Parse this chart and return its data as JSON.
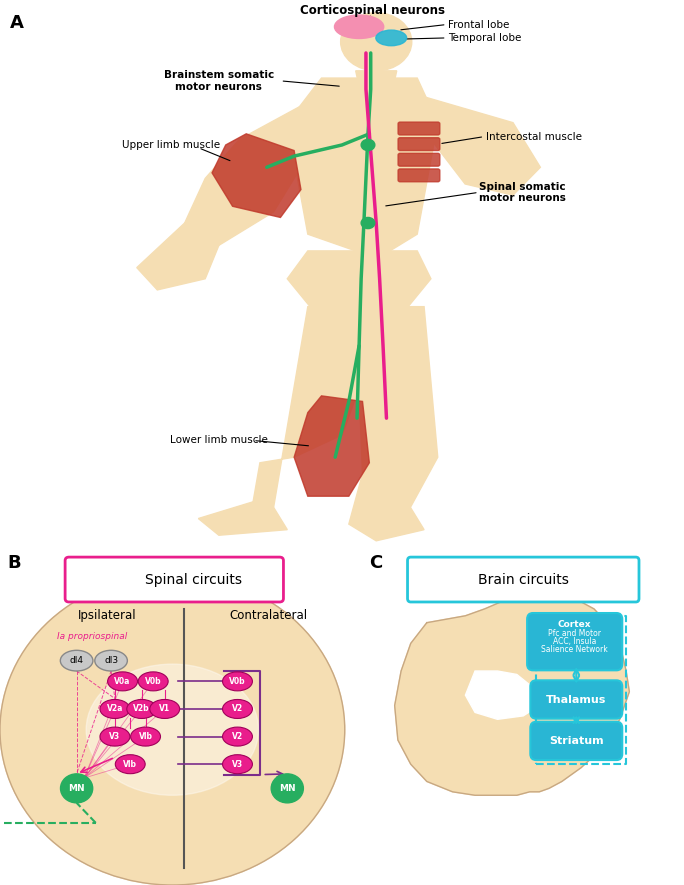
{
  "bg_color": "#ffffff",
  "skin_color": "#f5deb3",
  "skin_dark": "#e8c49a",
  "muscle_color": "#c0392b",
  "pink_color": "#e91e8c",
  "green_color": "#27ae60",
  "blue_color": "#2196f3",
  "brain_pink": "#f48fb1",
  "brain_blue": "#29b6d4",
  "node_magenta": "#e91e8c",
  "node_green": "#27ae60",
  "node_gray": "#b0b0b0",
  "spinal_bg": "#f5deb3",
  "purple_color": "#7b2d8b",
  "teal_color": "#26c6da",
  "label_A": "A",
  "label_B": "B",
  "label_C": "C",
  "title_spinal": "Spinal circuits",
  "title_brain": "Brain circuits",
  "text_corticospinal": "Corticospinal neurons",
  "text_frontal": "Frontal lobe",
  "text_temporal": "Temporal lobe",
  "text_brainstem": "Brainstem somatic\nmotor neurons",
  "text_upper_limb": "Upper limb muscle",
  "text_intercostal": "Intercostal muscle",
  "text_spinal_somatic": "Spinal somatic\nmotor neurons",
  "text_lower_limb": "Lower limb muscle",
  "text_ipsilateral": "Ipsilateral",
  "text_contralateral": "Contralateral",
  "text_la_proprio": "Ia propriospinal",
  "text_thalamus": "Thalamus",
  "text_striatum": "Striatum",
  "text_cortex_line1": "Cortex",
  "text_cortex_line2": "Pfc and Motor",
  "text_cortex_line3": "ACC, Insula",
  "text_cortex_line4": "Salience Network",
  "text_dl4": "dI4",
  "text_dl3": "dI3",
  "text_MN": "MN"
}
